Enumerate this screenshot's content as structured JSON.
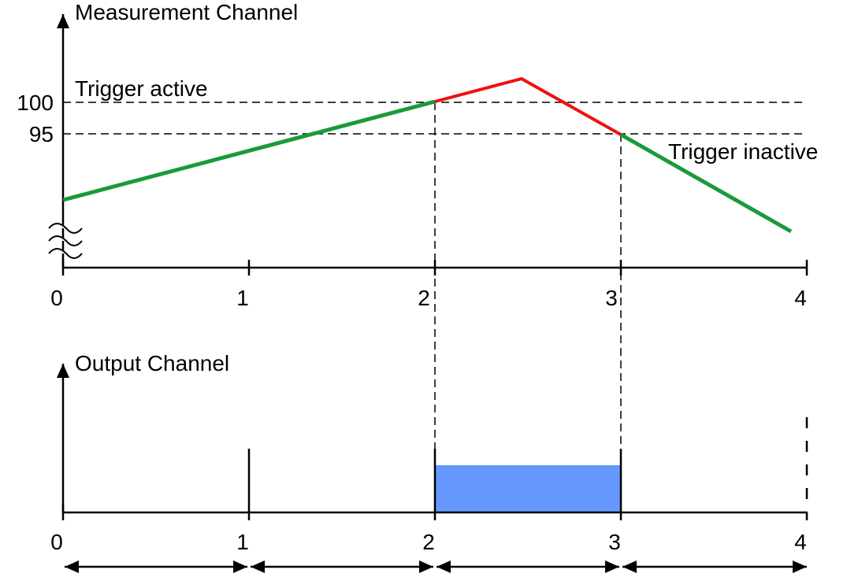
{
  "measurement": {
    "title": "Measurement Channel",
    "y_labels": [
      "100",
      "95"
    ],
    "annotations": [
      "Trigger active",
      "Trigger inactive"
    ],
    "x_labels": [
      "0",
      "1",
      "2",
      "3",
      "4"
    ]
  },
  "output": {
    "title": "Output Channel",
    "x_labels": [
      "0",
      "1",
      "2",
      "3",
      "4"
    ]
  }
}
